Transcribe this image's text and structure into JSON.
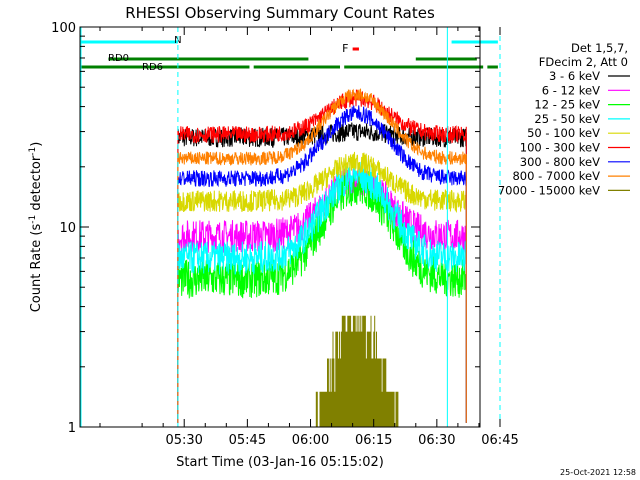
{
  "chart_data": {
    "type": "line",
    "title": "RHESSI Observing Summary Count Rates",
    "xlabel": "Start Time (03-Jan-16 05:15:02)",
    "ylabel_prefix": "Count Rate (s",
    "ylabel_sup": "-1",
    "ylabel_suffix": " detector",
    "ylabel_sup2": "-1",
    "ylabel_end": ")",
    "yscale": "log",
    "ylim": [
      1,
      100
    ],
    "xlim_minutes": [
      5.25,
      100.25
    ],
    "y_ticks": [
      {
        "value": 1,
        "label": "1"
      },
      {
        "value": 10,
        "label": "10"
      },
      {
        "value": 100,
        "label": "100"
      }
    ],
    "x_ticks": [
      {
        "minute": 30,
        "label": "05:30"
      },
      {
        "minute": 45,
        "label": "05:45"
      },
      {
        "minute": 60,
        "label": "06:00"
      },
      {
        "minute": 75,
        "label": "06:15"
      },
      {
        "minute": 90,
        "label": "06:30"
      },
      {
        "minute": 105,
        "label": "06:45"
      }
    ],
    "legend": {
      "header1": "Det 1,5,7,",
      "header2": "FDecim 2, Att 0",
      "placement": "right"
    },
    "data_window_minutes": [
      28.5,
      97.0
    ],
    "series": [
      {
        "name": "3 - 6 keV",
        "color": "#000000",
        "base": 28,
        "peak": 30,
        "noise": 0.07
      },
      {
        "name": "6 - 12 keV",
        "color": "#ff00ff",
        "base": 9.0,
        "peak": 17,
        "noise": 0.12
      },
      {
        "name": "12 - 25 keV",
        "color": "#00ff00",
        "base": 5.5,
        "peak": 16,
        "noise": 0.14
      },
      {
        "name": "25 - 50 keV",
        "color": "#00ffff",
        "base": 7.0,
        "peak": 18,
        "noise": 0.12
      },
      {
        "name": "50 - 100 keV",
        "color": "#d8d800",
        "base": 13.5,
        "peak": 21,
        "noise": 0.08
      },
      {
        "name": "100 - 300 keV",
        "color": "#ff0000",
        "base": 29,
        "peak": 44,
        "noise": 0.06
      },
      {
        "name": "300 - 800 keV",
        "color": "#0000ff",
        "base": 17.5,
        "peak": 37,
        "noise": 0.06
      },
      {
        "name": "800 - 7000 keV",
        "color": "#ff8000",
        "base": 22,
        "peak": 46,
        "noise": 0.05
      },
      {
        "name": "7000 - 15000 keV",
        "color": "#808000",
        "base": 1.0,
        "peak": 3.6,
        "noise": 0.0
      }
    ],
    "flags": {
      "saa_label": "N",
      "flare_label": "F",
      "rdo_label": "RD0",
      "rd6_label": "RD6",
      "cyan_segments": [
        [
          5.25,
          28.5
        ],
        [
          93.5,
          104.5
        ]
      ],
      "red_segment": [
        70.0,
        71.5
      ],
      "green_upper": [
        [
          12.0,
          59.5
        ],
        [
          85.0,
          99.5
        ]
      ],
      "green_lower": [
        [
          5.25,
          45.5
        ],
        [
          46.5,
          67.0
        ],
        [
          68.0,
          101.0
        ],
        [
          102.0,
          104.5
        ]
      ],
      "cyan_solid_lines": [
        5.25,
        92.5
      ],
      "cyan_dashed_lines": [
        28.5,
        105.0
      ]
    }
  },
  "footer_timestamp": "25-Oct-2021 12:58"
}
